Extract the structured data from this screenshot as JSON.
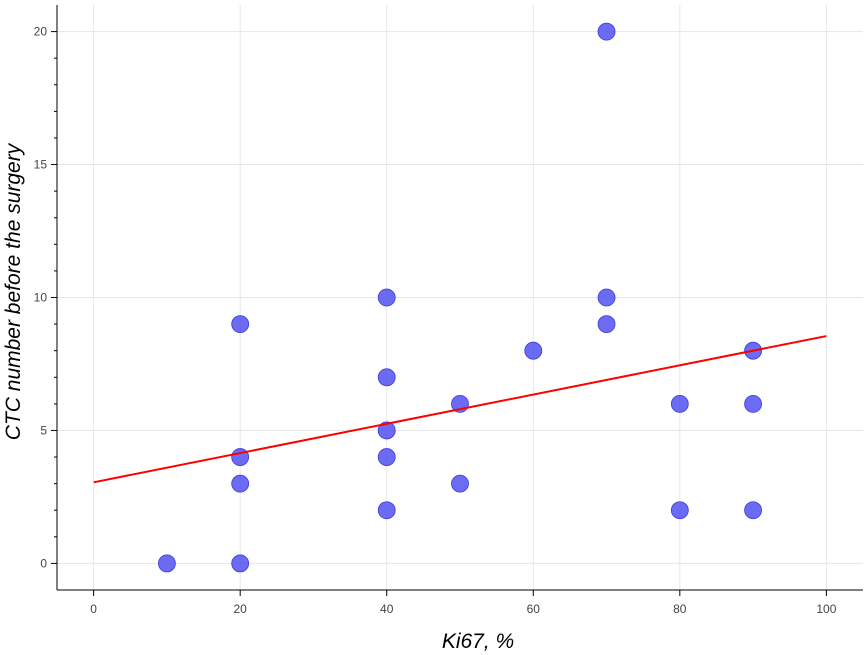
{
  "chart_data": {
    "type": "scatter",
    "xlabel": "Ki67, %",
    "ylabel": "CTC number before the surgery",
    "xlim": [
      -5,
      105
    ],
    "ylim": [
      -1,
      21
    ],
    "x_ticks": [
      0,
      20,
      40,
      60,
      80,
      100
    ],
    "y_ticks": [
      0,
      5,
      10,
      15,
      20
    ],
    "grid": true,
    "series": [
      {
        "points": [
          {
            "x": 10,
            "y": 0
          },
          {
            "x": 20,
            "y": 0
          },
          {
            "x": 20,
            "y": 3
          },
          {
            "x": 20,
            "y": 4
          },
          {
            "x": 20,
            "y": 9
          },
          {
            "x": 40,
            "y": 2
          },
          {
            "x": 40,
            "y": 4
          },
          {
            "x": 40,
            "y": 5
          },
          {
            "x": 40,
            "y": 7
          },
          {
            "x": 40,
            "y": 10
          },
          {
            "x": 50,
            "y": 3
          },
          {
            "x": 50,
            "y": 6
          },
          {
            "x": 60,
            "y": 8
          },
          {
            "x": 70,
            "y": 9
          },
          {
            "x": 70,
            "y": 10
          },
          {
            "x": 70,
            "y": 20
          },
          {
            "x": 80,
            "y": 2
          },
          {
            "x": 80,
            "y": 6
          },
          {
            "x": 90,
            "y": 2
          },
          {
            "x": 90,
            "y": 6
          },
          {
            "x": 90,
            "y": 8
          }
        ]
      }
    ],
    "trend_line": {
      "x": [
        0,
        100
      ],
      "y": [
        3.05,
        8.55
      ]
    },
    "colors": {
      "points": "#4b4bf0",
      "trend_line": "#ff0000",
      "grid": "#e6e6e6",
      "axis": "#000000"
    }
  }
}
